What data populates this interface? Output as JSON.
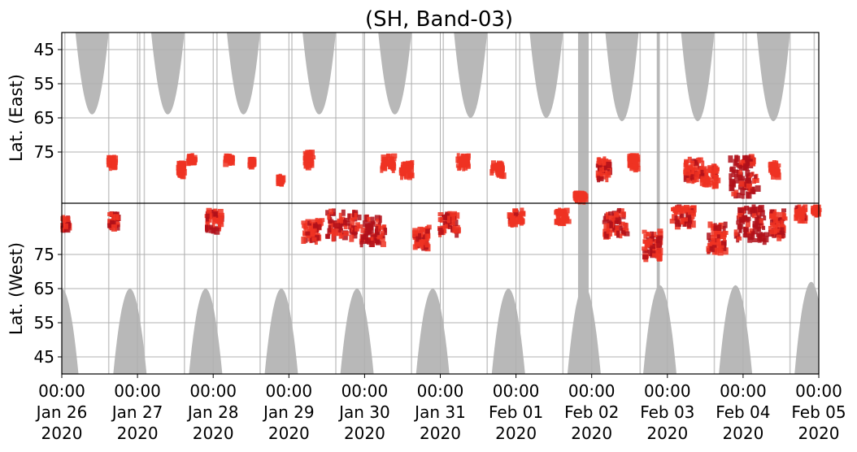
{
  "chart_data": {
    "type": "heatmap",
    "title": "(SH, Band-03)",
    "ylabel_top": "Lat. (East)",
    "ylabel_bottom": "Lat. (West)",
    "grid": true,
    "xlim": [
      "2020-01-26T00:00",
      "2020-02-05T00:00"
    ],
    "y_axis": {
      "top_half": {
        "range": [
          40,
          90
        ],
        "ticks": [
          45,
          55,
          65,
          75
        ]
      },
      "bottom_half": {
        "range": [
          90,
          40
        ],
        "ticks": [
          75,
          65,
          55,
          45
        ]
      }
    },
    "x_ticks": [
      {
        "time": "00:00",
        "date": "Jan 26",
        "year": "2020"
      },
      {
        "time": "00:00",
        "date": "Jan 27",
        "year": "2020"
      },
      {
        "time": "00:00",
        "date": "Jan 28",
        "year": "2020"
      },
      {
        "time": "00:00",
        "date": "Jan 29",
        "year": "2020"
      },
      {
        "time": "00:00",
        "date": "Jan 30",
        "year": "2020"
      },
      {
        "time": "00:00",
        "date": "Jan 31",
        "year": "2020"
      },
      {
        "time": "00:00",
        "date": "Feb 01",
        "year": "2020"
      },
      {
        "time": "00:00",
        "date": "Feb 02",
        "year": "2020"
      },
      {
        "time": "00:00",
        "date": "Feb 03",
        "year": "2020"
      },
      {
        "time": "00:00",
        "date": "Feb 04",
        "year": "2020"
      },
      {
        "time": "00:00",
        "date": "Feb 05",
        "year": "2020"
      }
    ],
    "series": [
      {
        "kind": "data-gap",
        "color": "#b8b8b8",
        "daylight_lobes_east": [
          {
            "center_day": 0.4,
            "min_lat": 64
          },
          {
            "center_day": 1.4,
            "min_lat": 64
          },
          {
            "center_day": 2.4,
            "min_lat": 64
          },
          {
            "center_day": 3.4,
            "min_lat": 64
          },
          {
            "center_day": 4.4,
            "min_lat": 64
          },
          {
            "center_day": 5.4,
            "min_lat": 65
          },
          {
            "center_day": 6.4,
            "min_lat": 65
          },
          {
            "center_day": 7.4,
            "min_lat": 66
          },
          {
            "center_day": 8.4,
            "min_lat": 66
          },
          {
            "center_day": 9.4,
            "min_lat": 66
          }
        ],
        "daylight_lobes_west": [
          {
            "center_day": 0.0,
            "min_lat": 65
          },
          {
            "center_day": 0.9,
            "min_lat": 65
          },
          {
            "center_day": 1.9,
            "min_lat": 65
          },
          {
            "center_day": 2.9,
            "min_lat": 65
          },
          {
            "center_day": 3.9,
            "min_lat": 65
          },
          {
            "center_day": 4.9,
            "min_lat": 65
          },
          {
            "center_day": 5.9,
            "min_lat": 65
          },
          {
            "center_day": 6.9,
            "min_lat": 66
          },
          {
            "center_day": 7.9,
            "min_lat": 66
          },
          {
            "center_day": 8.9,
            "min_lat": 66
          },
          {
            "center_day": 9.9,
            "min_lat": 67
          }
        ],
        "gap_columns_day": [
          0.04,
          0.62,
          1.03,
          1.09,
          1.62,
          2.05,
          2.62,
          3.04,
          3.62,
          3.98,
          4.62,
          5.04,
          5.62,
          6.05,
          6.62,
          6.84,
          7.64,
          7.87,
          8.62,
          9.04,
          9.62,
          9.94
        ],
        "gap_bands_day": [
          [
            6.82,
            6.96
          ],
          [
            7.86,
            7.9
          ]
        ]
      },
      {
        "kind": "events",
        "color": "#ee3322",
        "color_strong": "#b0101a",
        "blobs": [
          {
            "day": 0.03,
            "lat": 84,
            "hemi": "W",
            "dday": 0.06,
            "dlat": 2,
            "strong": 0.4
          },
          {
            "day": 0.65,
            "lat": 78,
            "hemi": "E",
            "dday": 0.04,
            "dlat": 1.5,
            "strong": 0
          },
          {
            "day": 0.68,
            "lat": 85,
            "hemi": "W",
            "dday": 0.06,
            "dlat": 2,
            "strong": 0.5
          },
          {
            "day": 1.57,
            "lat": 80,
            "hemi": "E",
            "dday": 0.04,
            "dlat": 2,
            "strong": 0
          },
          {
            "day": 1.7,
            "lat": 77,
            "hemi": "E",
            "dday": 0.04,
            "dlat": 1,
            "strong": 0
          },
          {
            "day": 2.0,
            "lat": 85,
            "hemi": "W",
            "dday": 0.1,
            "dlat": 3,
            "strong": 0.4
          },
          {
            "day": 2.2,
            "lat": 77,
            "hemi": "E",
            "dday": 0.05,
            "dlat": 1,
            "strong": 0
          },
          {
            "day": 2.5,
            "lat": 78,
            "hemi": "E",
            "dday": 0.03,
            "dlat": 1,
            "strong": 0
          },
          {
            "day": 2.88,
            "lat": 83,
            "hemi": "E",
            "dday": 0.03,
            "dlat": 1,
            "strong": 0
          },
          {
            "day": 3.25,
            "lat": 77,
            "hemi": "E",
            "dday": 0.05,
            "dlat": 2,
            "strong": 0
          },
          {
            "day": 3.3,
            "lat": 82,
            "hemi": "W",
            "dday": 0.12,
            "dlat": 3,
            "strong": 0.3
          },
          {
            "day": 3.7,
            "lat": 84,
            "hemi": "W",
            "dday": 0.2,
            "dlat": 4,
            "strong": 0.5
          },
          {
            "day": 4.1,
            "lat": 82,
            "hemi": "W",
            "dday": 0.18,
            "dlat": 4,
            "strong": 0.6
          },
          {
            "day": 4.3,
            "lat": 78,
            "hemi": "E",
            "dday": 0.08,
            "dlat": 2,
            "strong": 0
          },
          {
            "day": 4.55,
            "lat": 80,
            "hemi": "E",
            "dday": 0.08,
            "dlat": 2,
            "strong": 0
          },
          {
            "day": 4.75,
            "lat": 80,
            "hemi": "W",
            "dday": 0.1,
            "dlat": 3,
            "strong": 0.3
          },
          {
            "day": 5.1,
            "lat": 84,
            "hemi": "W",
            "dday": 0.12,
            "dlat": 3,
            "strong": 0.4
          },
          {
            "day": 5.3,
            "lat": 78,
            "hemi": "E",
            "dday": 0.08,
            "dlat": 2,
            "strong": 0
          },
          {
            "day": 5.75,
            "lat": 80,
            "hemi": "E",
            "dday": 0.08,
            "dlat": 2,
            "strong": 0
          },
          {
            "day": 6.0,
            "lat": 86,
            "hemi": "W",
            "dday": 0.1,
            "dlat": 2,
            "strong": 0.2
          },
          {
            "day": 6.6,
            "lat": 86,
            "hemi": "W",
            "dday": 0.08,
            "dlat": 2,
            "strong": 0
          },
          {
            "day": 6.85,
            "lat": 88,
            "hemi": "E",
            "dday": 0.08,
            "dlat": 1,
            "strong": 0
          },
          {
            "day": 7.15,
            "lat": 80,
            "hemi": "E",
            "dday": 0.08,
            "dlat": 3,
            "strong": 0.2
          },
          {
            "day": 7.3,
            "lat": 84,
            "hemi": "W",
            "dday": 0.15,
            "dlat": 4,
            "strong": 0.4
          },
          {
            "day": 7.55,
            "lat": 78,
            "hemi": "E",
            "dday": 0.06,
            "dlat": 2,
            "strong": 0
          },
          {
            "day": 7.8,
            "lat": 78,
            "hemi": "W",
            "dday": 0.12,
            "dlat": 4,
            "strong": 0.2
          },
          {
            "day": 8.35,
            "lat": 80,
            "hemi": "E",
            "dday": 0.12,
            "dlat": 3,
            "strong": 0.2
          },
          {
            "day": 8.2,
            "lat": 86,
            "hemi": "W",
            "dday": 0.15,
            "dlat": 3,
            "strong": 0.3
          },
          {
            "day": 8.65,
            "lat": 80,
            "hemi": "W",
            "dday": 0.12,
            "dlat": 4,
            "strong": 0.3
          },
          {
            "day": 8.55,
            "lat": 82,
            "hemi": "E",
            "dday": 0.1,
            "dlat": 3,
            "strong": 0.2
          },
          {
            "day": 9.0,
            "lat": 82,
            "hemi": "E",
            "dday": 0.18,
            "dlat": 6,
            "strong": 0.8
          },
          {
            "day": 9.1,
            "lat": 84,
            "hemi": "W",
            "dday": 0.2,
            "dlat": 5,
            "strong": 0.8
          },
          {
            "day": 9.45,
            "lat": 84,
            "hemi": "W",
            "dday": 0.1,
            "dlat": 4,
            "strong": 0.3
          },
          {
            "day": 9.4,
            "lat": 80,
            "hemi": "E",
            "dday": 0.05,
            "dlat": 2,
            "strong": 0
          },
          {
            "day": 9.75,
            "lat": 87,
            "hemi": "W",
            "dday": 0.06,
            "dlat": 2,
            "strong": 0.2
          },
          {
            "day": 9.95,
            "lat": 88,
            "hemi": "W",
            "dday": 0.04,
            "dlat": 1,
            "strong": 0
          }
        ]
      }
    ]
  }
}
